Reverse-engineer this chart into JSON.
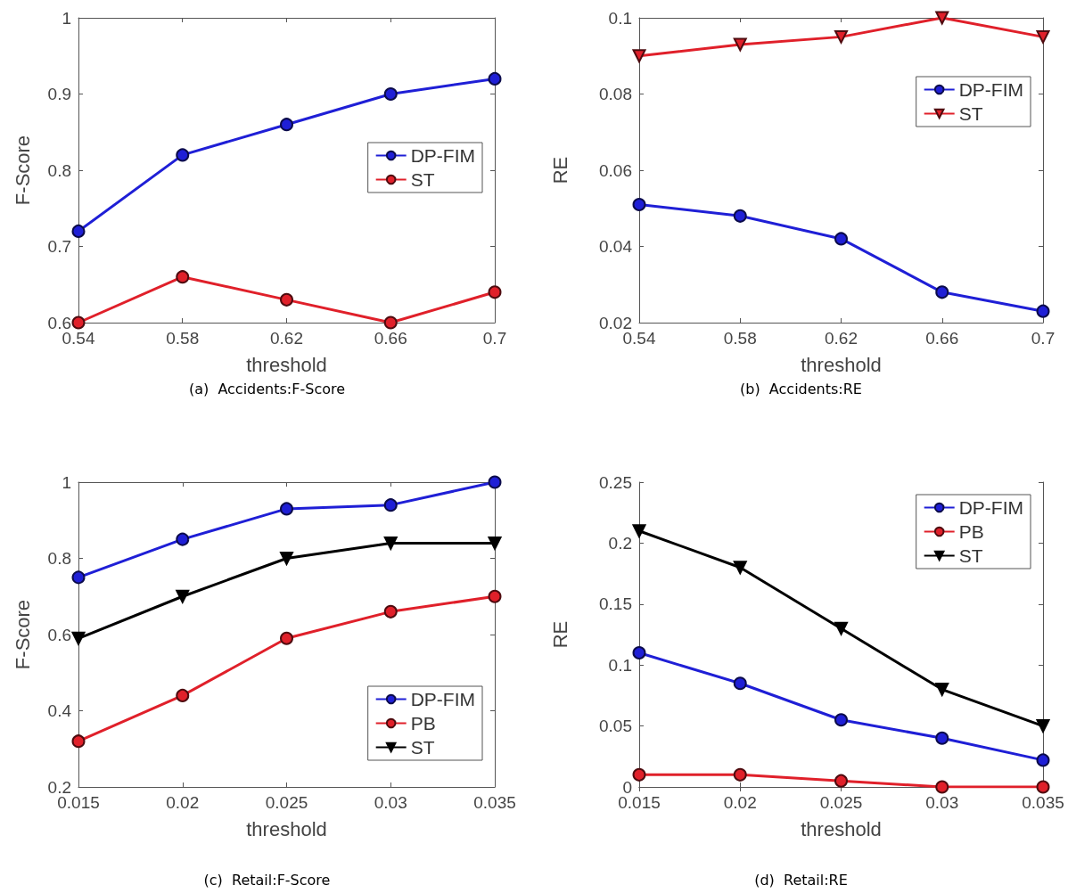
{
  "chart_data": [
    {
      "type": "line",
      "xlabel": "threshold",
      "ylabel": "F-Score",
      "annotations": [
        "(a)  Accidents:F-Score"
      ],
      "x": [
        0.54,
        0.58,
        0.62,
        0.66,
        0.7
      ],
      "xlim": [
        0.54,
        0.7
      ],
      "xticks": [
        0.54,
        0.58,
        0.62,
        0.66,
        0.7
      ],
      "ylim": [
        0.6,
        1
      ],
      "yticks": [
        0.6,
        0.7,
        0.8,
        0.9,
        1
      ],
      "grid": false,
      "legend": "right",
      "line_style": "solid",
      "series": [
        {
          "name": "DP-FIM",
          "color": "#1f1fd6",
          "marker": "circle",
          "values": [
            0.72,
            0.82,
            0.86,
            0.9,
            0.92
          ]
        },
        {
          "name": "ST",
          "color": "#e0202a",
          "marker": "circle",
          "values": [
            0.6,
            0.66,
            0.63,
            0.6,
            0.64
          ]
        }
      ]
    },
    {
      "type": "line",
      "xlabel": "threshold",
      "ylabel": "RE",
      "annotations": [
        "(b)  Accidents:RE"
      ],
      "x": [
        0.54,
        0.58,
        0.62,
        0.66,
        0.7
      ],
      "xlim": [
        0.54,
        0.7
      ],
      "xticks": [
        0.54,
        0.58,
        0.62,
        0.66,
        0.7
      ],
      "ylim": [
        0.02,
        0.1
      ],
      "yticks": [
        0.02,
        0.04,
        0.06,
        0.08,
        0.1
      ],
      "grid": false,
      "legend": "top right",
      "line_style": "solid",
      "series": [
        {
          "name": "DP-FIM",
          "color": "#1f1fd6",
          "marker": "circle",
          "values": [
            0.051,
            0.048,
            0.042,
            0.028,
            0.023
          ]
        },
        {
          "name": "ST",
          "color": "#e0202a",
          "marker": "triangle",
          "values": [
            0.09,
            0.093,
            0.095,
            0.1,
            0.095
          ]
        }
      ]
    },
    {
      "type": "line",
      "xlabel": "threshold",
      "ylabel": "F-Score",
      "annotations": [
        "(c)  Retail:F-Score"
      ],
      "x": [
        0.015,
        0.02,
        0.025,
        0.03,
        0.035
      ],
      "xlim": [
        0.015,
        0.035
      ],
      "xticks": [
        0.015,
        0.02,
        0.025,
        0.03,
        0.035
      ],
      "ylim": [
        0.2,
        1
      ],
      "yticks": [
        0.2,
        0.4,
        0.6,
        0.8,
        1
      ],
      "grid": false,
      "legend": "bottom right",
      "line_style": "solid",
      "series": [
        {
          "name": "DP-FIM",
          "color": "#1f1fd6",
          "marker": "circle",
          "values": [
            0.75,
            0.85,
            0.93,
            0.94,
            1.0
          ]
        },
        {
          "name": "PB",
          "color": "#e0202a",
          "marker": "circle",
          "values": [
            0.32,
            0.44,
            0.59,
            0.66,
            0.7
          ]
        },
        {
          "name": "ST",
          "color": "#000000",
          "marker": "triangle",
          "values": [
            0.59,
            0.7,
            0.8,
            0.84,
            0.84
          ]
        }
      ]
    },
    {
      "type": "line",
      "xlabel": "threshold",
      "ylabel": "RE",
      "annotations": [
        "(d)  Retail:RE"
      ],
      "x": [
        0.015,
        0.02,
        0.025,
        0.03,
        0.035
      ],
      "xlim": [
        0.015,
        0.035
      ],
      "xticks": [
        0.015,
        0.02,
        0.025,
        0.03,
        0.035
      ],
      "ylim": [
        0,
        0.25
      ],
      "yticks": [
        0,
        0.05,
        0.1,
        0.15,
        0.2,
        0.25
      ],
      "grid": false,
      "legend": "top right",
      "line_style": "solid",
      "series": [
        {
          "name": "DP-FIM",
          "color": "#1f1fd6",
          "marker": "circle",
          "values": [
            0.11,
            0.085,
            0.055,
            0.04,
            0.022
          ]
        },
        {
          "name": "PB",
          "color": "#e0202a",
          "marker": "circle",
          "values": [
            0.01,
            0.01,
            0.005,
            0,
            0
          ]
        },
        {
          "name": "ST",
          "color": "#000000",
          "marker": "triangle",
          "values": [
            0.21,
            0.18,
            0.13,
            0.08,
            0.05
          ]
        }
      ]
    }
  ]
}
